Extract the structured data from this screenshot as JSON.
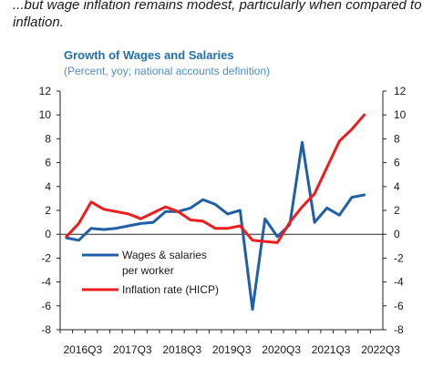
{
  "headline": "...but wage inflation remains modest, particularly when compared to inflation.",
  "chart_data": {
    "type": "line",
    "title": "Growth of Wages and Salaries",
    "subtitle": "(Percent, yoy; national accounts definition)",
    "x": [
      "2016Q3",
      "2016Q4",
      "2017Q1",
      "2017Q2",
      "2017Q3",
      "2017Q4",
      "2018Q1",
      "2018Q2",
      "2018Q3",
      "2018Q4",
      "2019Q1",
      "2019Q2",
      "2019Q3",
      "2019Q4",
      "2020Q1",
      "2020Q2",
      "2020Q3",
      "2020Q4",
      "2021Q1",
      "2021Q2",
      "2021Q3",
      "2021Q4",
      "2022Q1",
      "2022Q2",
      "2022Q3",
      "2022Q4"
    ],
    "xtick_labels": [
      "2016Q3",
      "2017Q3",
      "2018Q3",
      "2019Q3",
      "2020Q3",
      "2021Q3",
      "2022Q3"
    ],
    "ylim": [
      -8,
      12
    ],
    "yticks": [
      -8,
      -6,
      -4,
      -2,
      0,
      2,
      4,
      6,
      8,
      10,
      12
    ],
    "grid": false,
    "legend_placement": "bottom-left",
    "series": [
      {
        "name": "Wages & salaries per worker",
        "legend_lines": [
          "Wages & salaries",
          "per worker"
        ],
        "color": "#1f5fa8",
        "values": [
          -0.3,
          -0.5,
          0.5,
          0.4,
          0.5,
          0.7,
          0.9,
          1.0,
          1.9,
          1.9,
          2.2,
          2.9,
          2.5,
          1.7,
          2.0,
          -6.3,
          1.3,
          -0.2,
          0.8,
          7.7,
          1.0,
          2.2,
          1.6,
          3.1,
          3.3,
          null
        ]
      },
      {
        "name": "Inflation rate (HICP)",
        "legend_lines": [
          "Inflation rate (HICP)"
        ],
        "color": "#ee1c1c",
        "values": [
          -0.2,
          0.9,
          2.7,
          2.1,
          1.9,
          1.7,
          1.3,
          1.8,
          2.3,
          1.9,
          1.2,
          1.1,
          0.5,
          0.5,
          0.7,
          -0.5,
          -0.6,
          -0.7,
          1.0,
          2.3,
          3.4,
          5.6,
          7.8,
          8.8,
          10.0,
          null
        ]
      }
    ]
  }
}
